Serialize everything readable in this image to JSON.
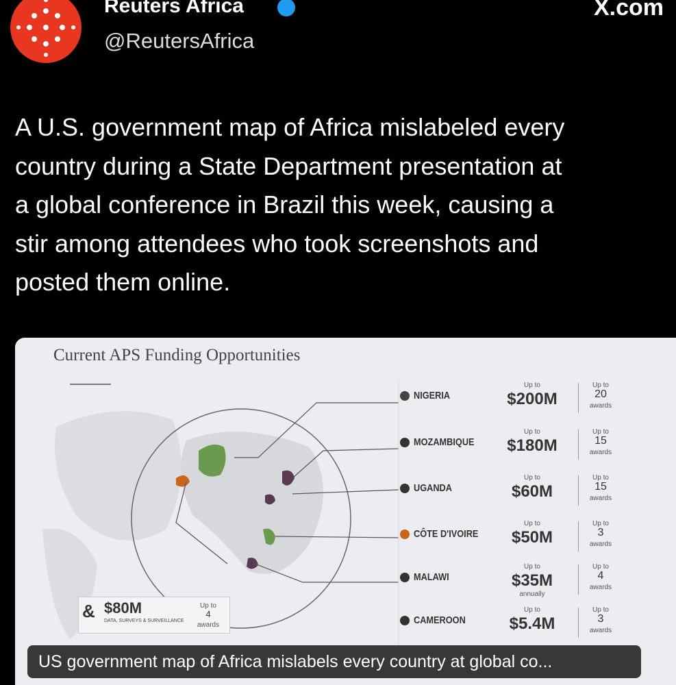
{
  "header": {
    "name": "Reuters Africa",
    "handle": "@ReutersAfrica",
    "watermark": "X.com"
  },
  "tweet": {
    "lines": [
      "A U.S. government map of Africa mislabeled every",
      "country during a State Department presentation at",
      "a global conference in Brazil this week, causing a",
      "stir among attendees who took screenshots and",
      "posted them online."
    ]
  },
  "slide": {
    "title": "Current APS Funding Opportunities",
    "rows": [
      {
        "country": "NIGERIA",
        "amount_prefix": "Up to",
        "amount": "$200M",
        "awards_prefix": "Up to",
        "awards": 20,
        "awards_suffix": "awards",
        "color": "#444"
      },
      {
        "country": "MOZAMBIQUE",
        "amount_prefix": "Up to",
        "amount": "$180M",
        "awards_prefix": "Up to",
        "awards": 15,
        "awards_suffix": "awards",
        "color": "#333"
      },
      {
        "country": "UGANDA",
        "amount_prefix": "Up to",
        "amount": "$60M",
        "awards_prefix": "Up to",
        "awards": 15,
        "awards_suffix": "awards",
        "color": "#333"
      },
      {
        "country": "CÔTE D'IVOIRE",
        "amount_prefix": "Up to",
        "amount": "$50M",
        "awards_prefix": "Up to",
        "awards": 3,
        "awards_suffix": "awards",
        "color": "#c8661e"
      },
      {
        "country": "MALAWI",
        "amount_prefix": "Up to",
        "amount": "$35M",
        "amount_note": "annually",
        "awards_prefix": "Up to",
        "awards": 4,
        "awards_suffix": "awards",
        "color": "#333"
      },
      {
        "country": "CAMEROON",
        "amount_prefix": "Up to",
        "amount": "$5.4M",
        "awards_prefix": "Up to",
        "awards": 3,
        "awards_suffix": "awards",
        "color": "#333"
      }
    ],
    "extra": {
      "symbol": "&",
      "amount": "$80M",
      "label": "DATA, SURVEYS & SURVEILLANCE",
      "awards_prefix": "Up to",
      "awards": 4,
      "awards_suffix": "awards"
    }
  },
  "caption": "US government map of Africa mislabels every country at global co..."
}
